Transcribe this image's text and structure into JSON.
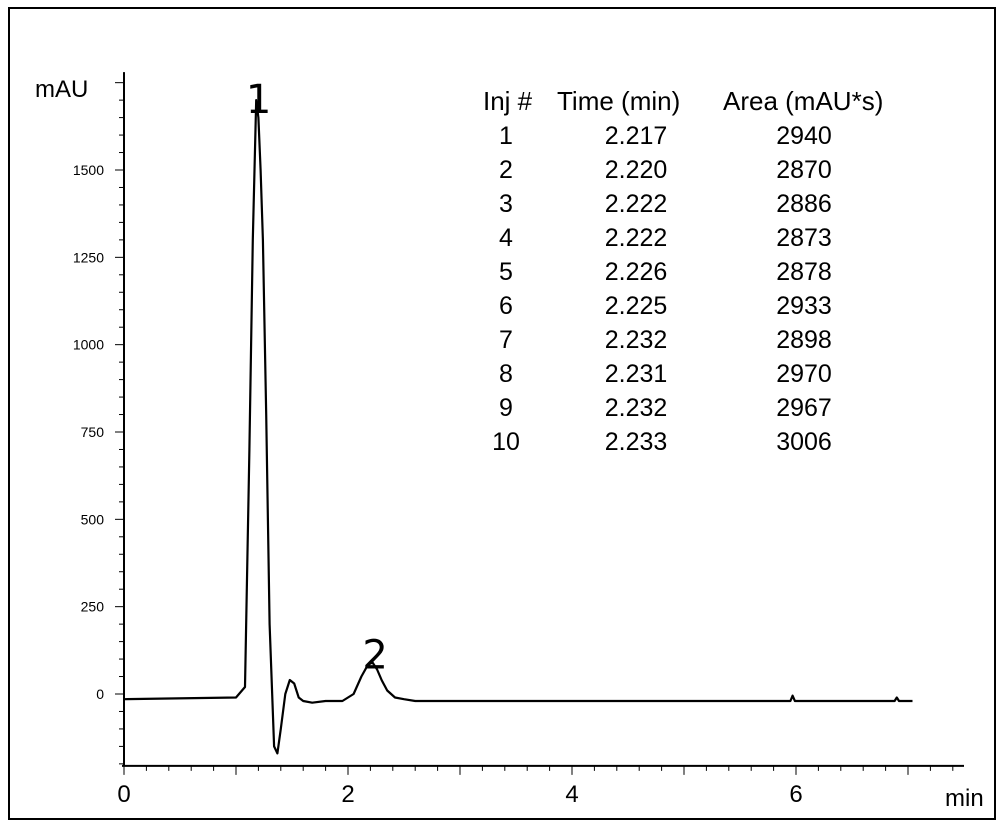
{
  "chart_data": {
    "type": "line",
    "xlabel": "min",
    "ylabel": "mAU",
    "xlim": [
      0,
      7.5
    ],
    "ylim": [
      -200,
      1780
    ],
    "x_ticks": [
      0,
      2,
      4,
      6
    ],
    "y_ticks": [
      0,
      250,
      500,
      750,
      1000,
      1250,
      1500
    ],
    "series": [
      {
        "x": [
          0.0,
          1.0,
          1.08,
          1.12,
          1.15,
          1.18,
          1.2,
          1.22,
          1.24,
          1.27,
          1.3,
          1.34,
          1.37,
          1.4,
          1.44,
          1.48,
          1.52,
          1.56,
          1.6,
          1.68,
          1.8,
          1.95,
          2.05,
          2.12,
          2.18,
          2.22,
          2.26,
          2.3,
          2.35,
          2.42,
          2.5,
          2.6,
          3.0,
          4.0,
          5.0,
          5.95,
          5.97,
          5.99,
          6.5,
          6.88,
          6.9,
          6.92,
          7.04
        ],
        "y": [
          -15,
          -10,
          20,
          700,
          1300,
          1700,
          1650,
          1500,
          1300,
          800,
          200,
          -150,
          -170,
          -100,
          0,
          40,
          30,
          -10,
          -20,
          -25,
          -20,
          -20,
          0,
          50,
          85,
          90,
          70,
          40,
          10,
          -10,
          -15,
          -20,
          -20,
          -20,
          -20,
          -20,
          -5,
          -20,
          -20,
          -20,
          -10,
          -20,
          -20
        ]
      }
    ],
    "annotations": [
      {
        "text": "1",
        "x": 1.22,
        "y": 1720
      },
      {
        "text": "2",
        "x": 2.26,
        "y": 130
      }
    ],
    "table": {
      "headers": [
        "Inj #",
        "Time (min)",
        "Area (mAU*s)"
      ],
      "rows": [
        [
          "1",
          "2.217",
          "2940"
        ],
        [
          "2",
          "2.220",
          "2870"
        ],
        [
          "3",
          "2.222",
          "2886"
        ],
        [
          "4",
          "2.222",
          "2873"
        ],
        [
          "5",
          "2.226",
          "2878"
        ],
        [
          "6",
          "2.225",
          "2933"
        ],
        [
          "7",
          "2.232",
          "2898"
        ],
        [
          "8",
          "2.231",
          "2970"
        ],
        [
          "9",
          "2.232",
          "2967"
        ],
        [
          "10",
          "2.233",
          "3006"
        ]
      ]
    },
    "grid": false,
    "legend": "none"
  }
}
